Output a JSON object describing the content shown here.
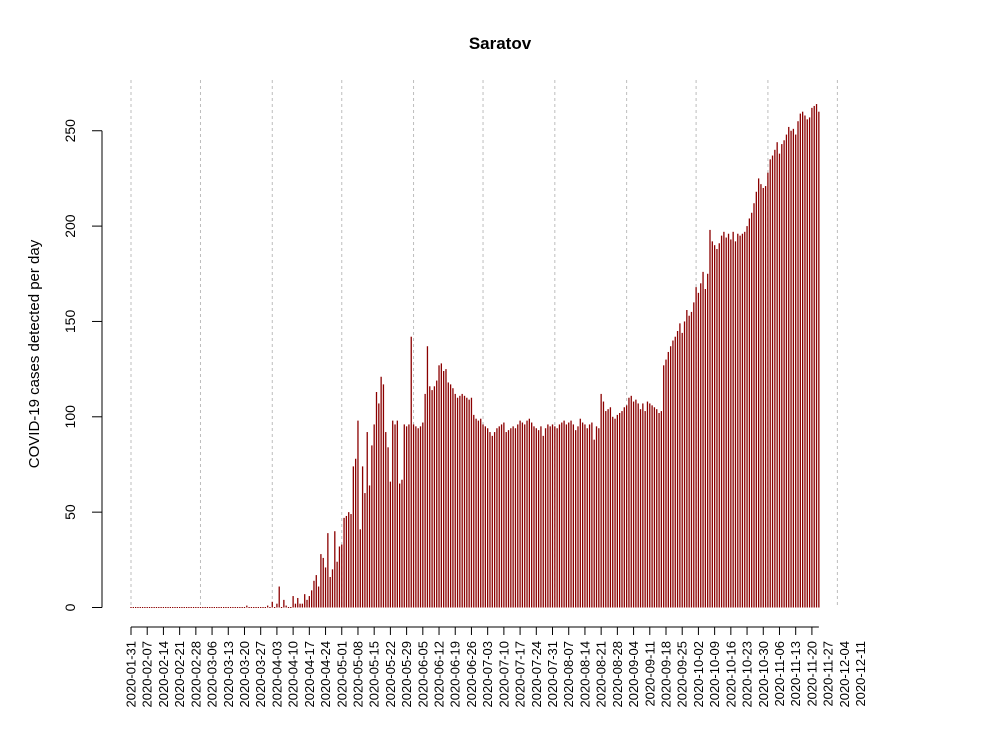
{
  "chart_data": {
    "type": "bar",
    "title": "Saratov",
    "xlabel": "",
    "ylabel": "COVID-19 cases detected per day",
    "ylim": [
      0,
      265
    ],
    "y_ticks": [
      0,
      50,
      100,
      150,
      200,
      250
    ],
    "start_date": "2020-01-31",
    "x_tick_labels": [
      "2020-01-31",
      "2020-02-07",
      "2020-02-14",
      "2020-02-21",
      "2020-02-28",
      "2020-03-06",
      "2020-03-13",
      "2020-03-20",
      "2020-03-27",
      "2020-04-03",
      "2020-04-10",
      "2020-04-17",
      "2020-04-24",
      "2020-05-01",
      "2020-05-08",
      "2020-05-15",
      "2020-05-22",
      "2020-05-29",
      "2020-06-05",
      "2020-06-12",
      "2020-06-19",
      "2020-06-26",
      "2020-07-03",
      "2020-07-10",
      "2020-07-17",
      "2020-07-24",
      "2020-07-31",
      "2020-08-07",
      "2020-08-14",
      "2020-08-21",
      "2020-08-28",
      "2020-09-04",
      "2020-09-11",
      "2020-09-18",
      "2020-09-25",
      "2020-10-02",
      "2020-10-09",
      "2020-10-16",
      "2020-10-23",
      "2020-10-30",
      "2020-11-06",
      "2020-11-13",
      "2020-11-20",
      "2020-11-27",
      "2020-12-04",
      "2020-12-11"
    ],
    "grid_dates": [
      "2020-01-31",
      "2020-03-01",
      "2020-04-01",
      "2020-05-01",
      "2020-06-01",
      "2020-07-01",
      "2020-08-01",
      "2020-09-01",
      "2020-10-01",
      "2020-11-01",
      "2020-12-01"
    ],
    "bar_color": "#8b0000",
    "values": [
      0,
      0,
      0,
      0,
      0,
      0,
      0,
      0,
      0,
      0,
      0,
      0,
      0,
      0,
      0,
      0,
      0,
      0,
      0,
      0,
      0,
      0,
      0,
      0,
      0,
      0,
      0,
      0,
      0,
      0,
      0,
      0,
      0,
      0,
      0,
      0,
      0,
      0,
      0,
      0,
      0,
      0,
      0,
      0,
      0,
      0,
      0,
      0,
      0,
      0,
      1,
      0,
      0,
      0,
      0,
      0,
      0,
      0,
      0,
      1,
      0,
      3,
      0,
      2,
      11,
      0,
      4,
      1,
      0,
      0,
      6,
      2,
      5,
      2,
      2,
      7,
      4,
      6,
      9,
      14,
      17,
      11,
      28,
      26,
      21,
      39,
      16,
      20,
      40,
      24,
      32,
      33,
      47,
      48,
      50,
      49,
      74,
      78,
      98,
      41,
      74,
      60,
      92,
      64,
      85,
      96,
      113,
      107,
      121,
      117,
      92,
      84,
      66,
      98,
      96,
      98,
      65,
      67,
      96,
      95,
      96,
      142,
      96,
      95,
      94,
      95,
      97,
      112,
      137,
      116,
      114,
      116,
      119,
      127,
      128,
      124,
      125,
      118,
      117,
      115,
      112,
      110,
      111,
      112,
      111,
      110,
      109,
      110,
      101,
      99,
      98,
      99,
      96,
      95,
      94,
      92,
      90,
      92,
      94,
      95,
      96,
      97,
      92,
      93,
      94,
      95,
      94,
      96,
      98,
      97,
      96,
      98,
      99,
      97,
      95,
      94,
      93,
      95,
      90,
      94,
      96,
      95,
      96,
      95,
      94,
      96,
      97,
      98,
      96,
      97,
      98,
      96,
      93,
      95,
      99,
      97,
      96,
      94,
      96,
      97,
      88,
      95,
      94,
      112,
      108,
      103,
      104,
      105,
      100,
      99,
      101,
      102,
      103,
      105,
      106,
      110,
      111,
      108,
      109,
      107,
      104,
      107,
      103,
      108,
      107,
      106,
      105,
      104,
      102,
      103,
      127,
      130,
      134,
      137,
      140,
      142,
      145,
      149,
      144,
      150,
      156,
      153,
      155,
      160,
      168,
      165,
      170,
      176,
      167,
      175,
      198,
      192,
      190,
      188,
      191,
      195,
      197,
      194,
      196,
      193,
      197,
      192,
      196,
      195,
      196,
      197,
      200,
      204,
      207,
      212,
      218,
      225,
      222,
      220,
      221,
      228,
      235,
      237,
      240,
      244,
      238,
      243,
      245,
      248,
      252,
      250,
      251,
      248,
      255,
      259,
      260,
      258,
      256,
      257,
      262,
      263,
      264,
      260
    ]
  }
}
